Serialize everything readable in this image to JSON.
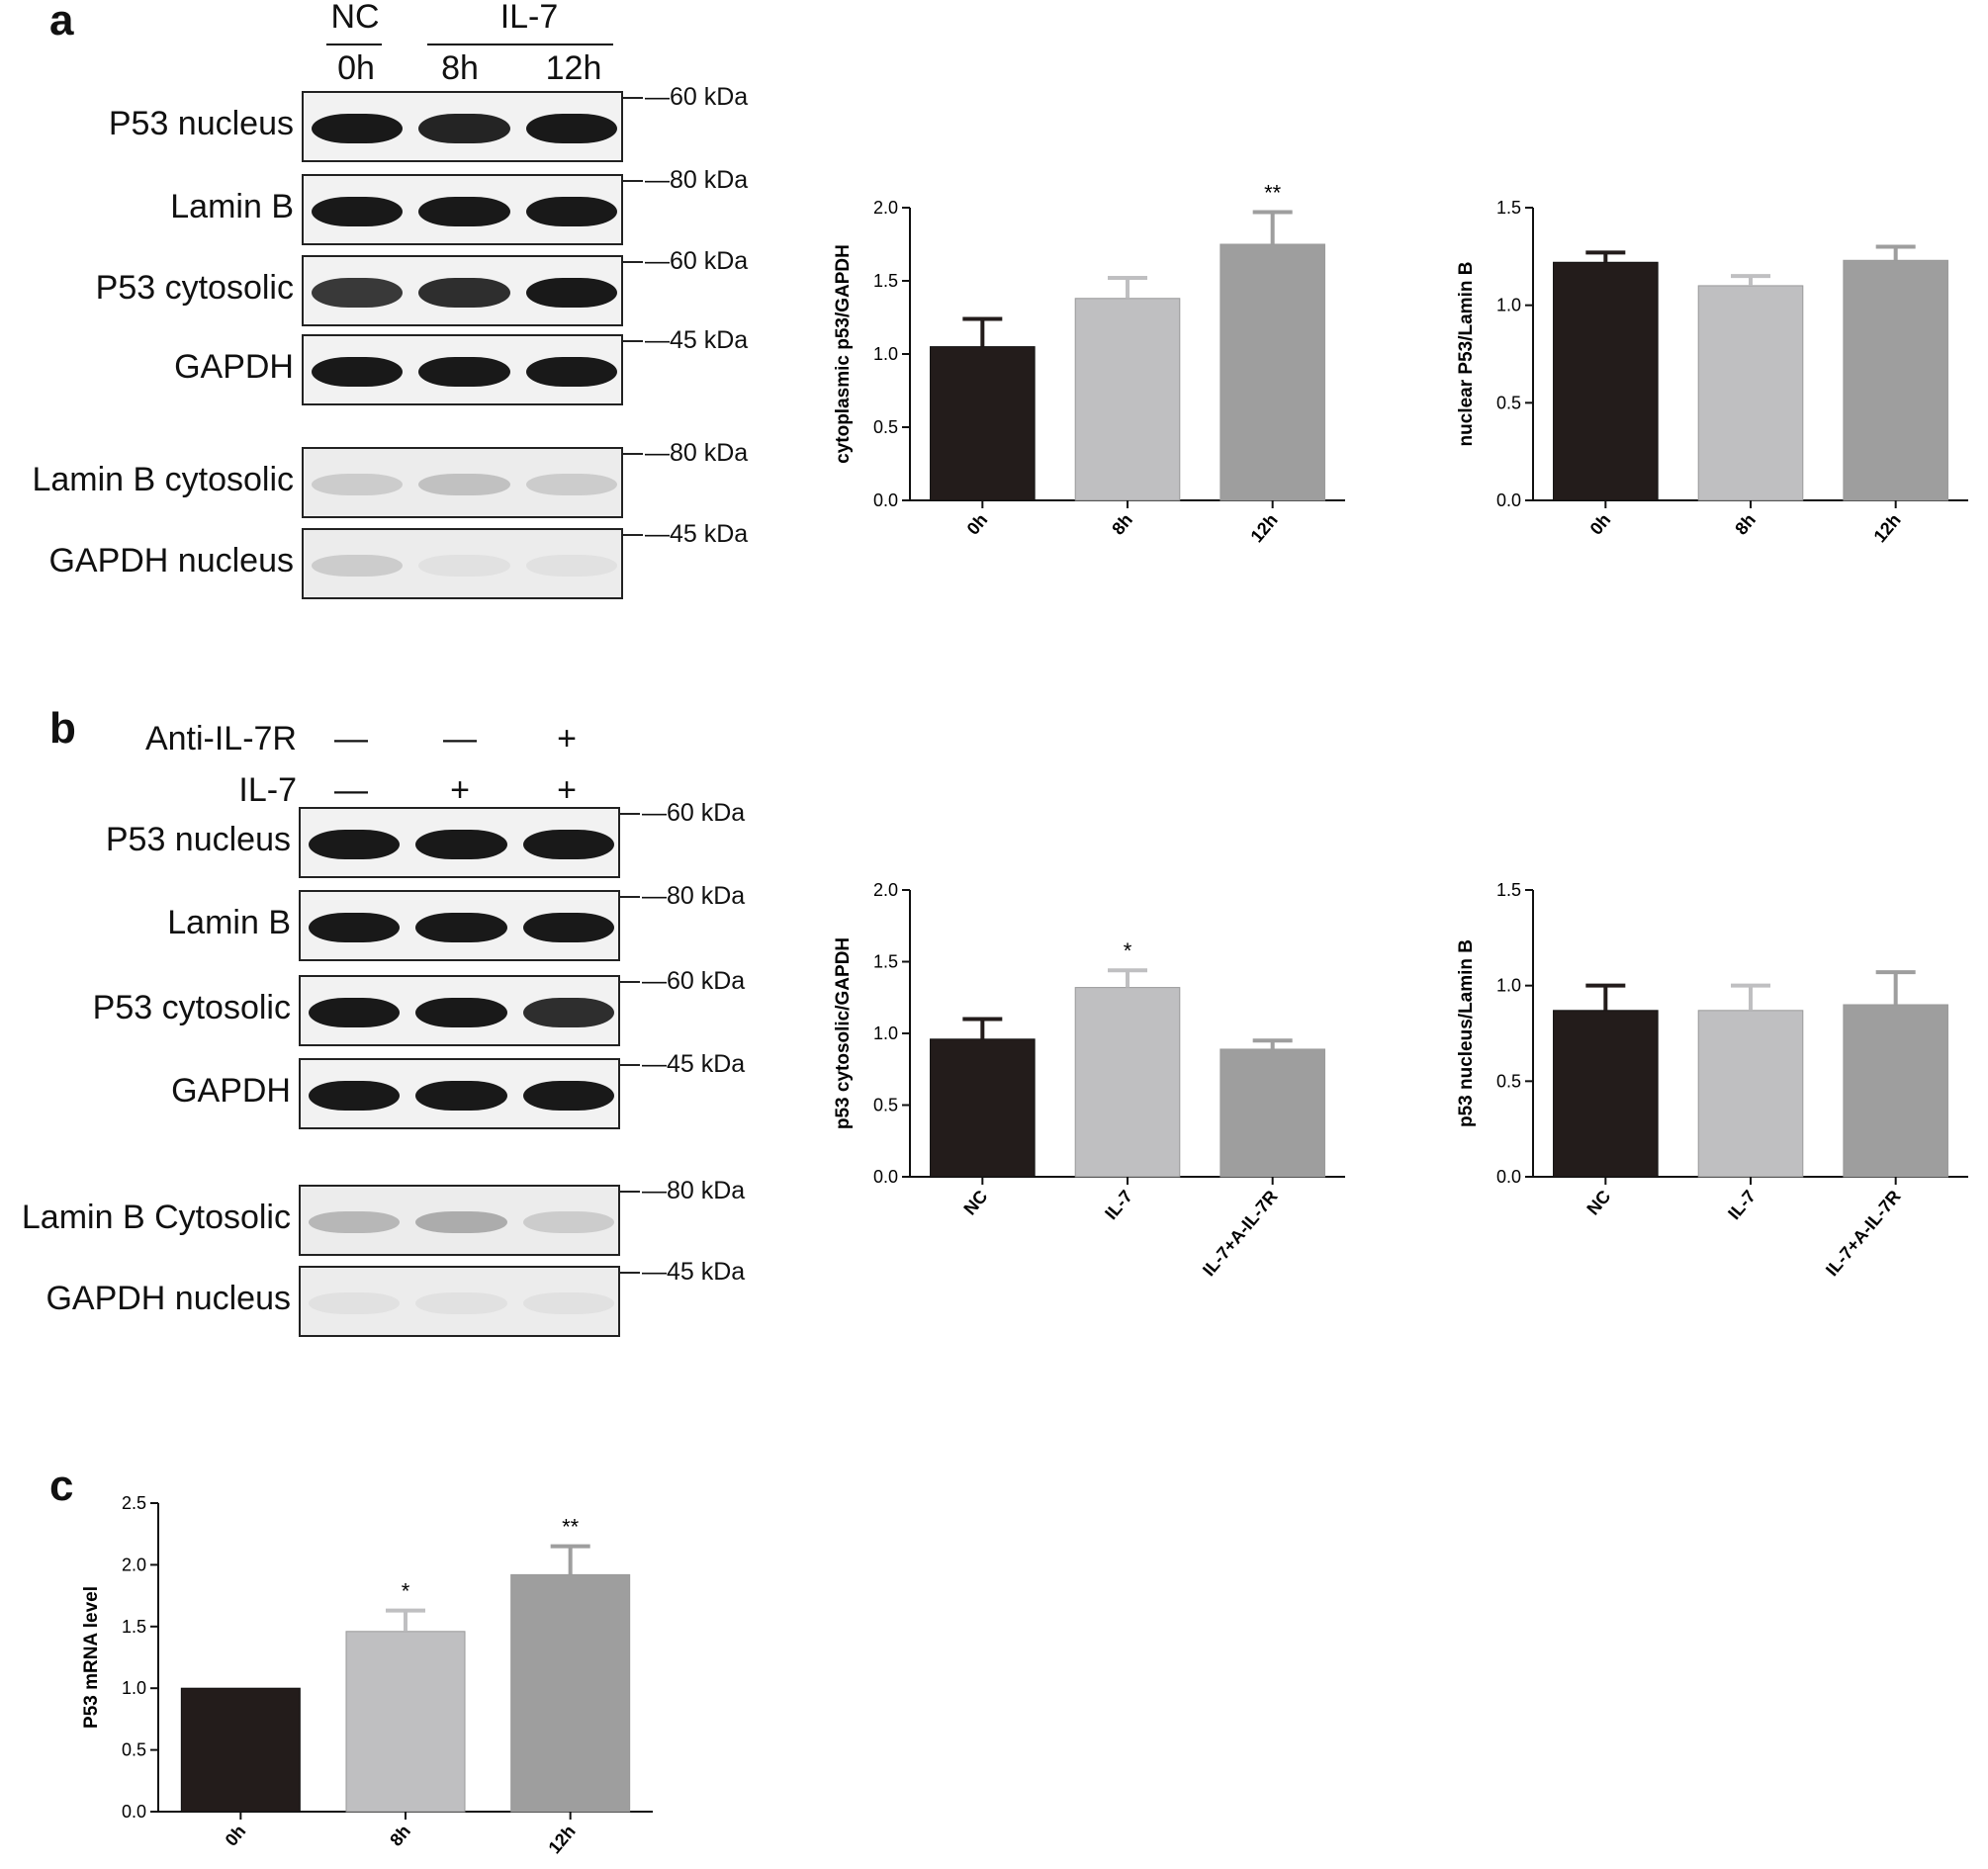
{
  "panels": {
    "a": {
      "letter": "a",
      "groups": [
        {
          "text": "NC"
        },
        {
          "text": "IL-7"
        }
      ],
      "lanes": [
        "0h",
        "8h",
        "12h"
      ],
      "blots": [
        {
          "label": "P53 nucleus",
          "marker": "—60 kDa",
          "intensity": [
            1.0,
            0.95,
            1.0
          ]
        },
        {
          "label": "Lamin B",
          "marker": "—80 kDa",
          "intensity": [
            1.0,
            1.0,
            1.0
          ]
        },
        {
          "label": "P53 cytosolic",
          "marker": "—60 kDa",
          "intensity": [
            0.85,
            0.9,
            1.0
          ]
        },
        {
          "label": "GAPDH",
          "marker": "—45 kDa",
          "intensity": [
            1.0,
            1.0,
            1.0
          ]
        },
        {
          "label": "Lamin B cytosolic",
          "marker": "—80 kDa",
          "intensity": [
            0.15,
            0.2,
            0.15
          ]
        },
        {
          "label": "GAPDH nucleus",
          "marker": "—45 kDa",
          "intensity": [
            0.15,
            0.05,
            0.05
          ]
        }
      ]
    },
    "b": {
      "letter": "b",
      "treatment_rows": [
        {
          "label": "Anti-IL-7R",
          "values": [
            "—",
            "—",
            "+"
          ]
        },
        {
          "label": "IL-7",
          "values": [
            "—",
            "+",
            "+"
          ]
        }
      ],
      "blots": [
        {
          "label": "P53 nucleus",
          "marker": "—60 kDa",
          "intensity": [
            1.0,
            1.0,
            1.0
          ]
        },
        {
          "label": "Lamin B",
          "marker": "—80 kDa",
          "intensity": [
            1.0,
            1.0,
            1.0
          ]
        },
        {
          "label": "P53 cytosolic",
          "marker": "—60 kDa",
          "intensity": [
            1.0,
            1.0,
            0.9
          ]
        },
        {
          "label": "GAPDH",
          "marker": "—45 kDa",
          "intensity": [
            1.0,
            1.0,
            1.0
          ]
        },
        {
          "label": "Lamin B Cytosolic",
          "marker": "—80 kDa",
          "intensity": [
            0.25,
            0.3,
            0.15
          ]
        },
        {
          "label": "GAPDH nucleus",
          "marker": "—45 kDa",
          "intensity": [
            0.05,
            0.05,
            0.05
          ]
        }
      ]
    },
    "c": {
      "letter": "c"
    }
  },
  "colors": {
    "dark": "#231c1b",
    "light": "#bfbfc1",
    "mid": "#9e9e9e"
  },
  "chart_data": [
    {
      "id": "a-cyto",
      "type": "bar",
      "categories": [
        "0h",
        "8h",
        "12h"
      ],
      "values": [
        1.05,
        1.38,
        1.75
      ],
      "errors": [
        0.19,
        0.14,
        0.22
      ],
      "significance": [
        "",
        "",
        "**"
      ],
      "ylabel": "cytoplasmic p53/GAPDH",
      "ylim": [
        0,
        2.0
      ],
      "yticks": [
        "0.0",
        "0.5",
        "1.0",
        "1.5",
        "2.0"
      ]
    },
    {
      "id": "a-nuc",
      "type": "bar",
      "categories": [
        "0h",
        "8h",
        "12h"
      ],
      "values": [
        1.22,
        1.1,
        1.23
      ],
      "errors": [
        0.05,
        0.05,
        0.07
      ],
      "significance": [
        "",
        "",
        ""
      ],
      "ylabel": "nuclear P53/Lamin B",
      "ylim": [
        0,
        1.5
      ],
      "yticks": [
        "0.0",
        "0.5",
        "1.0",
        "1.5"
      ]
    },
    {
      "id": "b-cyto",
      "type": "bar",
      "categories": [
        "NC",
        "IL-7",
        "IL-7+A-IL-7R"
      ],
      "values": [
        0.96,
        1.32,
        0.89
      ],
      "errors": [
        0.14,
        0.12,
        0.06
      ],
      "significance": [
        "",
        "*",
        ""
      ],
      "ylabel": "p53 cytosolic/GAPDH",
      "ylim": [
        0,
        2.0
      ],
      "yticks": [
        "0.0",
        "0.5",
        "1.0",
        "1.5",
        "2.0"
      ]
    },
    {
      "id": "b-nuc",
      "type": "bar",
      "categories": [
        "NC",
        "IL-7",
        "IL-7+A-IL-7R"
      ],
      "values": [
        0.87,
        0.87,
        0.9
      ],
      "errors": [
        0.13,
        0.13,
        0.17
      ],
      "significance": [
        "",
        "",
        ""
      ],
      "ylabel": "p53 nucleus/Lamin B",
      "ylim": [
        0,
        1.5
      ],
      "yticks": [
        "0.0",
        "0.5",
        "1.0",
        "1.5"
      ]
    },
    {
      "id": "c-mrna",
      "type": "bar",
      "categories": [
        "0h",
        "8h",
        "12h"
      ],
      "values": [
        1.0,
        1.46,
        1.92
      ],
      "errors": [
        0.0,
        0.17,
        0.23
      ],
      "significance": [
        "",
        "*",
        "**"
      ],
      "ylabel": "P53 mRNA level",
      "ylim": [
        0,
        2.5
      ],
      "yticks": [
        "0.0",
        "0.5",
        "1.0",
        "1.5",
        "2.0",
        "2.5"
      ]
    }
  ]
}
